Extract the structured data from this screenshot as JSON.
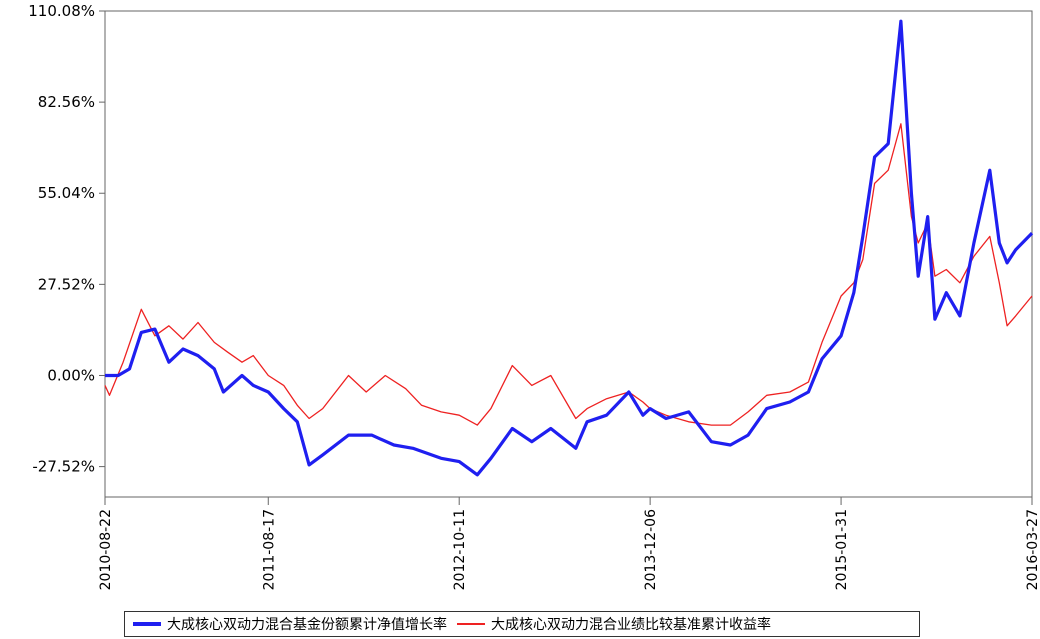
{
  "chart_data": {
    "type": "line",
    "title": "",
    "xlabel": "",
    "ylabel": "",
    "ylim": [
      -36.7,
      110.08
    ],
    "y_ticks": [
      "110.08%",
      "82.56%",
      "55.04%",
      "27.52%",
      "0.00%",
      "-27.52%"
    ],
    "y_tick_values": [
      110.08,
      82.56,
      55.04,
      27.52,
      0.0,
      -27.52
    ],
    "x_ticks": [
      "2010-08-22",
      "2011-08-17",
      "2012-10-11",
      "2013-12-06",
      "2015-01-31",
      "2016-03-27"
    ],
    "x_range": [
      "2010-08-22",
      "2016-03-27"
    ],
    "grid": false,
    "legend_position": "bottom",
    "series": [
      {
        "name": "大成核心双动力混合基金份额累计净值增长率",
        "color": "#1f1ff0",
        "points": [
          [
            "2010-08-22",
            0.0
          ],
          [
            "2010-09-20",
            0.0
          ],
          [
            "2010-10-15",
            2.0
          ],
          [
            "2010-11-10",
            13.0
          ],
          [
            "2010-12-10",
            14.0
          ],
          [
            "2011-01-10",
            4.0
          ],
          [
            "2011-02-10",
            8.0
          ],
          [
            "2011-03-15",
            6.0
          ],
          [
            "2011-04-20",
            2.0
          ],
          [
            "2011-05-10",
            -5.0
          ],
          [
            "2011-06-20",
            0.0
          ],
          [
            "2011-07-15",
            -3.0
          ],
          [
            "2011-08-17",
            -5.0
          ],
          [
            "2011-09-20",
            -10.0
          ],
          [
            "2011-10-20",
            -14.0
          ],
          [
            "2011-11-15",
            -27.0
          ],
          [
            "2011-12-15",
            -24.0
          ],
          [
            "2012-02-10",
            -18.0
          ],
          [
            "2012-04-01",
            -18.0
          ],
          [
            "2012-05-20",
            -21.0
          ],
          [
            "2012-07-01",
            -22.0
          ],
          [
            "2012-09-01",
            -25.0
          ],
          [
            "2012-10-11",
            -26.0
          ],
          [
            "2012-11-20",
            -30.0
          ],
          [
            "2012-12-20",
            -25.0
          ],
          [
            "2013-02-05",
            -16.0
          ],
          [
            "2013-03-20",
            -20.0
          ],
          [
            "2013-05-01",
            -16.0
          ],
          [
            "2013-06-25",
            -22.0
          ],
          [
            "2013-07-20",
            -14.0
          ],
          [
            "2013-09-01",
            -12.0
          ],
          [
            "2013-10-20",
            -5.0
          ],
          [
            "2013-11-20",
            -12.0
          ],
          [
            "2013-12-06",
            -10.0
          ],
          [
            "2014-01-10",
            -13.0
          ],
          [
            "2014-03-01",
            -11.0
          ],
          [
            "2014-04-20",
            -20.0
          ],
          [
            "2014-06-01",
            -21.0
          ],
          [
            "2014-07-10",
            -18.0
          ],
          [
            "2014-08-20",
            -10.0
          ],
          [
            "2014-10-10",
            -8.0
          ],
          [
            "2014-11-20",
            -5.0
          ],
          [
            "2014-12-20",
            5.0
          ],
          [
            "2015-01-31",
            12.0
          ],
          [
            "2015-02-28",
            25.0
          ],
          [
            "2015-03-20",
            42.0
          ],
          [
            "2015-04-15",
            66.0
          ],
          [
            "2015-05-15",
            70.0
          ],
          [
            "2015-06-12",
            107.0
          ],
          [
            "2015-07-05",
            55.0
          ],
          [
            "2015-07-20",
            30.0
          ],
          [
            "2015-08-10",
            48.0
          ],
          [
            "2015-08-26",
            17.0
          ],
          [
            "2015-09-20",
            25.0
          ],
          [
            "2015-10-20",
            18.0
          ],
          [
            "2015-11-20",
            40.0
          ],
          [
            "2015-12-25",
            62.0
          ],
          [
            "2016-01-15",
            40.0
          ],
          [
            "2016-02-01",
            34.0
          ],
          [
            "2016-02-20",
            38.0
          ],
          [
            "2016-03-27",
            43.0
          ]
        ]
      },
      {
        "name": "大成核心双动力混合业绩比较基准累计收益率",
        "color": "#ee2222",
        "points": [
          [
            "2010-08-22",
            -3.0
          ],
          [
            "2010-09-01",
            -6.0
          ],
          [
            "2010-10-01",
            4.0
          ],
          [
            "2010-11-10",
            20.0
          ],
          [
            "2010-12-10",
            12.0
          ],
          [
            "2011-01-10",
            15.0
          ],
          [
            "2011-02-10",
            11.0
          ],
          [
            "2011-03-15",
            16.0
          ],
          [
            "2011-04-20",
            10.0
          ],
          [
            "2011-05-20",
            7.0
          ],
          [
            "2011-06-20",
            4.0
          ],
          [
            "2011-07-15",
            6.0
          ],
          [
            "2011-08-17",
            0.0
          ],
          [
            "2011-09-20",
            -3.0
          ],
          [
            "2011-10-20",
            -9.0
          ],
          [
            "2011-11-15",
            -13.0
          ],
          [
            "2011-12-15",
            -10.0
          ],
          [
            "2012-02-10",
            0.0
          ],
          [
            "2012-03-20",
            -5.0
          ],
          [
            "2012-05-01",
            0.0
          ],
          [
            "2012-06-15",
            -4.0
          ],
          [
            "2012-07-20",
            -9.0
          ],
          [
            "2012-09-01",
            -11.0
          ],
          [
            "2012-10-11",
            -12.0
          ],
          [
            "2012-11-20",
            -15.0
          ],
          [
            "2012-12-20",
            -10.0
          ],
          [
            "2013-02-05",
            3.0
          ],
          [
            "2013-03-20",
            -3.0
          ],
          [
            "2013-05-01",
            0.0
          ],
          [
            "2013-06-25",
            -13.0
          ],
          [
            "2013-07-20",
            -10.0
          ],
          [
            "2013-09-01",
            -7.0
          ],
          [
            "2013-10-20",
            -5.0
          ],
          [
            "2013-11-20",
            -8.0
          ],
          [
            "2013-12-06",
            -10.0
          ],
          [
            "2014-01-10",
            -12.0
          ],
          [
            "2014-03-01",
            -14.0
          ],
          [
            "2014-04-20",
            -15.0
          ],
          [
            "2014-06-01",
            -15.0
          ],
          [
            "2014-07-10",
            -11.0
          ],
          [
            "2014-08-20",
            -6.0
          ],
          [
            "2014-10-10",
            -5.0
          ],
          [
            "2014-11-20",
            -2.0
          ],
          [
            "2014-12-20",
            10.0
          ],
          [
            "2015-01-31",
            24.0
          ],
          [
            "2015-02-28",
            28.0
          ],
          [
            "2015-03-20",
            35.0
          ],
          [
            "2015-04-15",
            58.0
          ],
          [
            "2015-05-15",
            62.0
          ],
          [
            "2015-06-12",
            76.0
          ],
          [
            "2015-07-05",
            48.0
          ],
          [
            "2015-07-20",
            40.0
          ],
          [
            "2015-08-10",
            46.0
          ],
          [
            "2015-08-26",
            30.0
          ],
          [
            "2015-09-20",
            32.0
          ],
          [
            "2015-10-20",
            28.0
          ],
          [
            "2015-11-20",
            36.0
          ],
          [
            "2015-12-25",
            42.0
          ],
          [
            "2016-01-15",
            28.0
          ],
          [
            "2016-02-01",
            15.0
          ],
          [
            "2016-02-20",
            18.0
          ],
          [
            "2016-03-27",
            24.0
          ]
        ]
      }
    ]
  }
}
